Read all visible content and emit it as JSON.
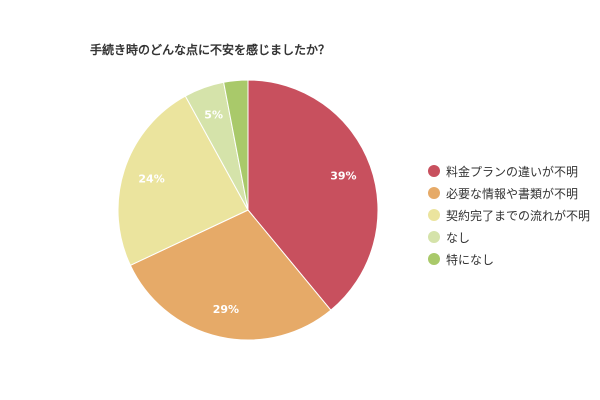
{
  "chart_data": {
    "type": "pie",
    "title": "手続き時のどんな点に不安を感じましたか？",
    "categories": [
      "料金プランの違いが不明",
      "必要な情報や書類が不明",
      "契約完了までの流れが不明",
      "なし",
      "特になし"
    ],
    "values": [
      39,
      29,
      24,
      5,
      3
    ],
    "data_labels": [
      "39%",
      "29%",
      "24%",
      "5%",
      ""
    ],
    "colors": [
      "#c8505e",
      "#e6aa68",
      "#ebe49e",
      "#d5e3aa",
      "#a9c96a"
    ],
    "legend_position": "right"
  }
}
